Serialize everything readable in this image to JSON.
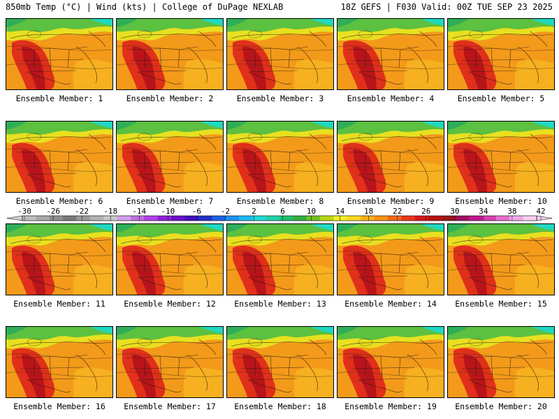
{
  "header": {
    "left": "850mb Temp (°C) | Wind (kts) | College of DuPage NEXLAB",
    "right": "18Z GEFS | F030 Valid: 00Z TUE SEP 23 2025"
  },
  "panels": [
    {
      "label": "Ensemble Member: 1"
    },
    {
      "label": "Ensemble Member: 2"
    },
    {
      "label": "Ensemble Member: 3"
    },
    {
      "label": "Ensemble Member: 4"
    },
    {
      "label": "Ensemble Member: 5"
    },
    {
      "label": "Ensemble Member: 6"
    },
    {
      "label": "Ensemble Member: 7"
    },
    {
      "label": "Ensemble Member: 8"
    },
    {
      "label": "Ensemble Member: 9"
    },
    {
      "label": "Ensemble Member: 10"
    },
    {
      "label": "Ensemble Member: 11"
    },
    {
      "label": "Ensemble Member: 12"
    },
    {
      "label": "Ensemble Member: 13"
    },
    {
      "label": "Ensemble Member: 14"
    },
    {
      "label": "Ensemble Member: 15"
    },
    {
      "label": "Ensemble Member: 16"
    },
    {
      "label": "Ensemble Member: 17"
    },
    {
      "label": "Ensemble Member: 18"
    },
    {
      "label": "Ensemble Member: 19"
    },
    {
      "label": "Ensemble Member: 20"
    }
  ],
  "colorbar": {
    "labels": [
      "-30",
      "-26",
      "-22",
      "-18",
      "-14",
      "-10",
      "-6",
      "-2",
      "2",
      "6",
      "10",
      "14",
      "18",
      "22",
      "26",
      "30",
      "34",
      "38",
      "42"
    ],
    "colors": [
      "#bfbfbf",
      "#a8a8a8",
      "#8f8f8f",
      "#7a7a7a",
      "#9a9a9a",
      "#b2b2b2",
      "#c8c8c8",
      "#d2a0e8",
      "#c070e0",
      "#b040e8",
      "#9020d8",
      "#6a10c8",
      "#4010c0",
      "#2030c8",
      "#2060e0",
      "#2090f0",
      "#20b8f0",
      "#20d8d8",
      "#20d0a8",
      "#20c070",
      "#30b040",
      "#70c020",
      "#b8d810",
      "#f0f020",
      "#f8d820",
      "#f8b018",
      "#f89018",
      "#f06818",
      "#e83818",
      "#d81818",
      "#b81010",
      "#981818",
      "#a01060",
      "#c01890",
      "#d840b0",
      "#e870d0",
      "#f0a8e8",
      "#f8d0f0"
    ]
  },
  "colors": {
    "green_north": "#32b55a",
    "yellow": "#e8e020",
    "orange": "#f39a1a",
    "red": "#e0301a",
    "dark_red": "#b8141a",
    "teal": "#20d8c0"
  }
}
